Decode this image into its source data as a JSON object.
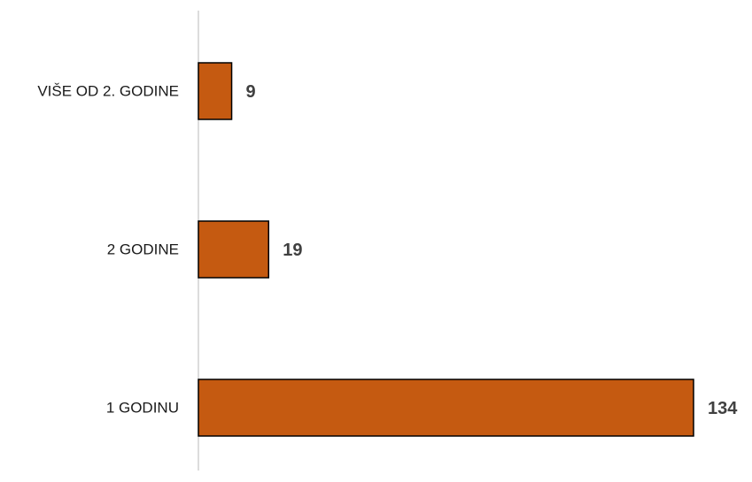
{
  "chart_data": {
    "type": "bar",
    "orientation": "horizontal",
    "title": "",
    "xlabel": "",
    "ylabel": "",
    "categories": [
      "VIŠE OD 2. GODINE",
      "2 GODINE",
      "1 GODINU"
    ],
    "values": [
      9,
      19,
      134
    ],
    "bar_color": "#C55A11",
    "value_labels": true,
    "grid": false,
    "legend": "none"
  }
}
